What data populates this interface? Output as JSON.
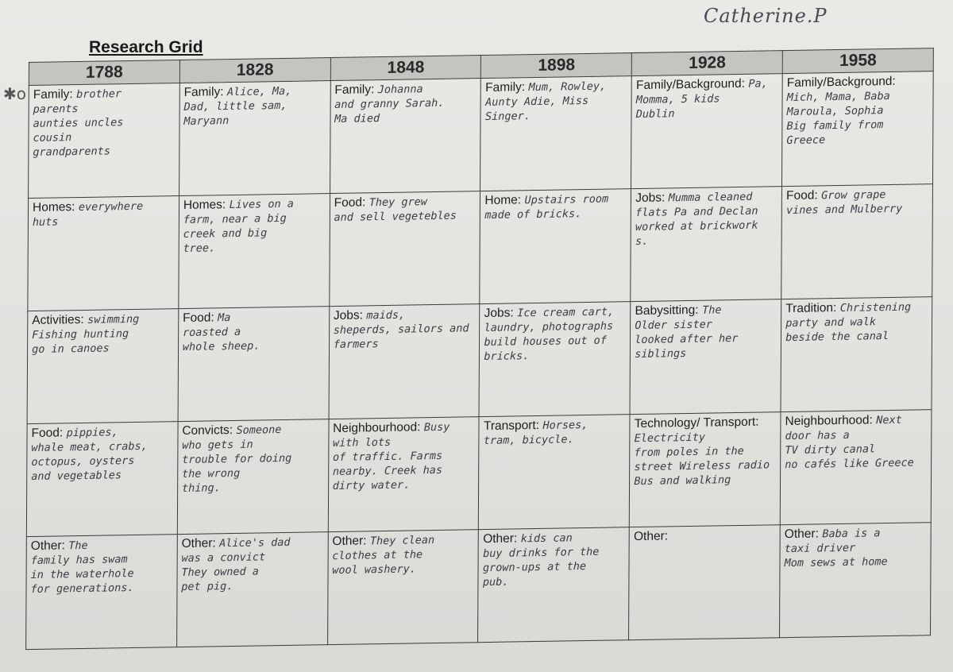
{
  "student_name": "Catherine.P",
  "title": "Research Grid",
  "margin_mark": "✱o",
  "years": [
    "1788",
    "1828",
    "1848",
    "1898",
    "1928",
    "1958"
  ],
  "rows": [
    [
      {
        "label": "Family:",
        "text": "brother\nparents\naunties uncles\ncousin\ngrandparents"
      },
      {
        "label": "Family:",
        "text": "Alice, Ma,\nDad, little sam,\nMaryann"
      },
      {
        "label": "Family:",
        "text": "Johanna\nand granny Sarah.\nMa died"
      },
      {
        "label": "Family:",
        "text": "Mum, Rowley,\nAunty Adie, Miss\nSinger."
      },
      {
        "label": "Family/Background:",
        "text": "Pa, Momma, 5 kids\nDublin"
      },
      {
        "label": "Family/Background:",
        "text": "Mich, Mama, Baba\nMaroula, Sophia\nBig family from\nGreece"
      }
    ],
    [
      {
        "label": "Homes:",
        "text": "everywhere\nhuts"
      },
      {
        "label": "Homes:",
        "text": "Lives on a\nfarm, near a big\ncreek and big\ntree."
      },
      {
        "label": "Food:",
        "text": "They grew\nand sell vegetebles"
      },
      {
        "label": "Home:",
        "text": "Upstairs room\nmade of bricks."
      },
      {
        "label": "Jobs:",
        "text": "Mumma cleaned\nflats Pa and Declan\nworked at brickwork\ns."
      },
      {
        "label": "Food:",
        "text": "Grow grape\nvines and Mulberry"
      }
    ],
    [
      {
        "label": "Activities:",
        "text": "swimming\nFishing hunting\ngo in canoes"
      },
      {
        "label": "Food:",
        "text": "Ma\nroasted a\nwhole sheep."
      },
      {
        "label": "Jobs:",
        "text": "maids,\nsheperds, sailors and\nfarmers"
      },
      {
        "label": "Jobs:",
        "text": "Ice cream cart,\nlaundry, photographs\nbuild houses out of\nbricks."
      },
      {
        "label": "Babysitting:",
        "text": "The\nOlder sister\nlooked after her\nsiblings"
      },
      {
        "label": "Tradition:",
        "text": "Christening\nparty and walk\nbeside the canal"
      }
    ],
    [
      {
        "label": "Food:",
        "text": "pippies,\nwhale meat, crabs,\noctopus, oysters\nand vegetables"
      },
      {
        "label": "Convicts:",
        "text": "Someone\nwho gets in\ntrouble for doing\nthe wrong\nthing."
      },
      {
        "label": "Neighbourhood:",
        "text": "Busy with lots\nof traffic. Farms\nnearby. Creek has\ndirty water."
      },
      {
        "label": "Transport:",
        "text": "Horses,\ntram, bicycle."
      },
      {
        "label": "Technology/ Transport:",
        "text": "Electricity\nfrom poles in the\nstreet Wireless radio\nBus and walking"
      },
      {
        "label": "Neighbourhood:",
        "text": "Next door has a\nTV dirty canal\nno cafés like Greece"
      }
    ],
    [
      {
        "label": "Other:",
        "text": "The\nfamily has swam\nin the waterhole\nfor generations."
      },
      {
        "label": "Other:",
        "text": "Alice's dad\nwas a convict\nThey owned a\npet pig."
      },
      {
        "label": "Other:",
        "text": "They clean\nclothes at the\nwool washery."
      },
      {
        "label": "Other:",
        "text": "kids can\nbuy drinks for the\ngrown-ups at the\npub."
      },
      {
        "label": "Other:",
        "text": ""
      },
      {
        "label": "Other:",
        "text": "Baba is a\ntaxi driver\nMom sews at home"
      }
    ]
  ]
}
